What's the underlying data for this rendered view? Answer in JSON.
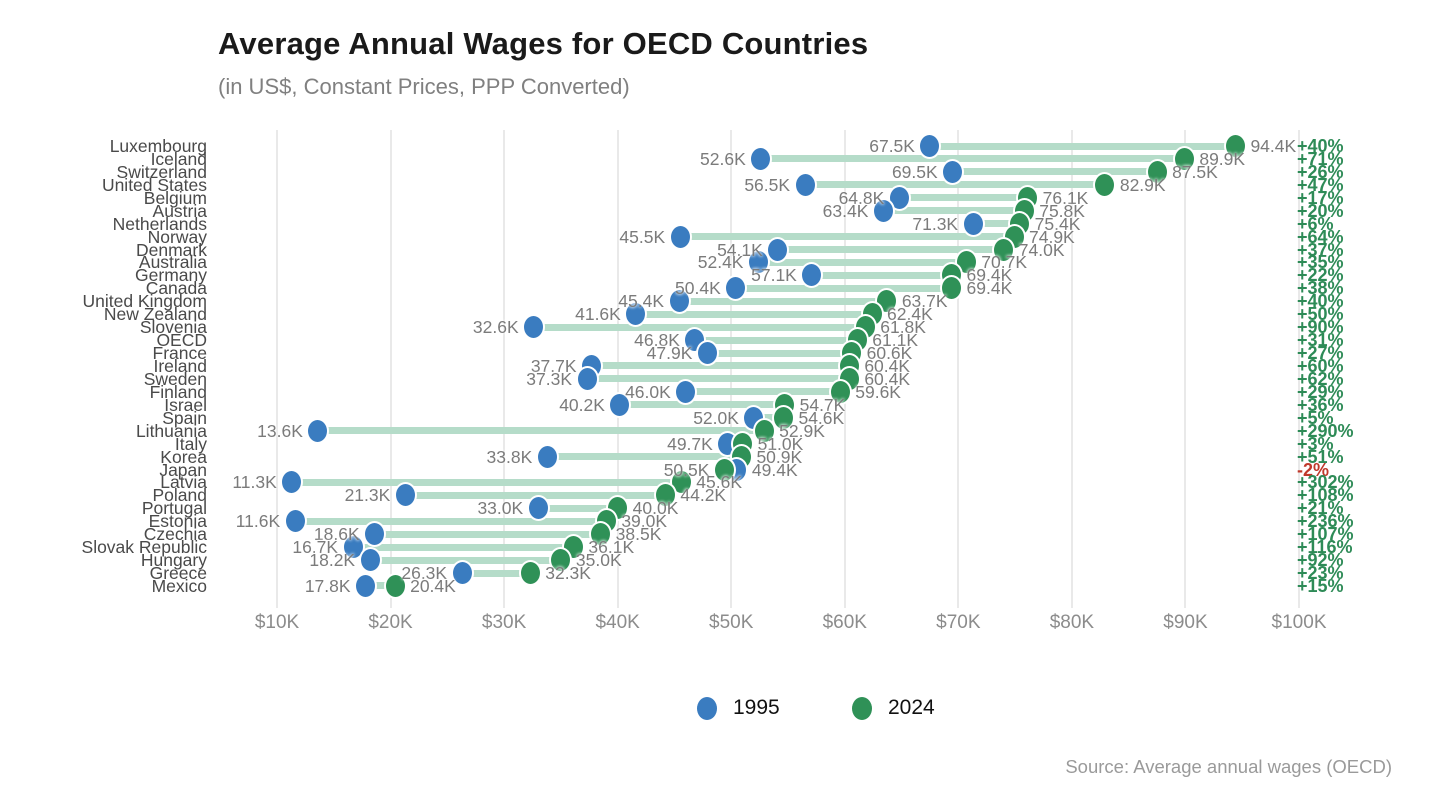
{
  "header": {
    "title": "Average Annual Wages for OECD Countries",
    "subtitle": "(in US$, Constant Prices, PPP Converted)"
  },
  "legend": {
    "items": [
      {
        "label": "1995",
        "color": "#3a7cc0"
      },
      {
        "label": "2024",
        "color": "#2f9157"
      }
    ]
  },
  "source": "Source: Average annual wages (OECD)",
  "colors": {
    "dot_1995": "#3a7cc0",
    "dot_2024": "#2f9157",
    "connector": "#b5dcc9",
    "pct_positive": "#2e8b57",
    "pct_negative": "#c0392b",
    "grid": "#e9e9e9",
    "axis_text": "#8c8c8c",
    "value_text": "#7b7b7b",
    "country_text": "#4a4a4a"
  },
  "chart_data": {
    "type": "dumbbell",
    "title": "Average Annual Wages for OECD Countries",
    "subtitle": "(in US$, Constant Prices, PPP Converted)",
    "unit": "US$ thousands, constant prices, PPP converted",
    "series_names": [
      "1995",
      "2024"
    ],
    "x_axis": {
      "ticks": [
        10,
        20,
        30,
        40,
        50,
        60,
        70,
        80,
        90,
        100
      ],
      "tick_labels": [
        "$10K",
        "$20K",
        "$30K",
        "$40K",
        "$50K",
        "$60K",
        "$70K",
        "$80K",
        "$90K",
        "$100K"
      ],
      "range": [
        10,
        100
      ],
      "grid": true
    },
    "legend_position": "bottom",
    "rows": [
      {
        "country": "Luxembourg",
        "v1995": 67.5,
        "v2024": 94.4,
        "label1995": "67.5K",
        "label2024": "94.4K",
        "change": "+40%",
        "negative": false
      },
      {
        "country": "Iceland",
        "v1995": 52.6,
        "v2024": 89.9,
        "label1995": "52.6K",
        "label2024": "89.9K",
        "change": "+71%",
        "negative": false
      },
      {
        "country": "Switzerland",
        "v1995": 69.5,
        "v2024": 87.5,
        "label1995": "69.5K",
        "label2024": "87.5K",
        "change": "+26%",
        "negative": false
      },
      {
        "country": "United States",
        "v1995": 56.5,
        "v2024": 82.9,
        "label1995": "56.5K",
        "label2024": "82.9K",
        "change": "+47%",
        "negative": false
      },
      {
        "country": "Belgium",
        "v1995": 64.8,
        "v2024": 76.1,
        "label1995": "64.8K",
        "label2024": "76.1K",
        "change": "+17%",
        "negative": false
      },
      {
        "country": "Austria",
        "v1995": 63.4,
        "v2024": 75.8,
        "label1995": "63.4K",
        "label2024": "75.8K",
        "change": "+20%",
        "negative": false
      },
      {
        "country": "Netherlands",
        "v1995": 71.3,
        "v2024": 75.4,
        "label1995": "71.3K",
        "label2024": "75.4K",
        "change": "+6%",
        "negative": false
      },
      {
        "country": "Norway",
        "v1995": 45.5,
        "v2024": 74.9,
        "label1995": "45.5K",
        "label2024": "74.9K",
        "change": "+64%",
        "negative": false
      },
      {
        "country": "Denmark",
        "v1995": 54.1,
        "v2024": 74.0,
        "label1995": "54.1K",
        "label2024": "74.0K",
        "change": "+37%",
        "negative": false
      },
      {
        "country": "Australia",
        "v1995": 52.4,
        "v2024": 70.7,
        "label1995": "52.4K",
        "label2024": "70.7K",
        "change": "+35%",
        "negative": false
      },
      {
        "country": "Germany",
        "v1995": 57.1,
        "v2024": 69.4,
        "label1995": "57.1K",
        "label2024": "69.4K",
        "change": "+22%",
        "negative": false
      },
      {
        "country": "Canada",
        "v1995": 50.4,
        "v2024": 69.4,
        "label1995": "50.4K",
        "label2024": "69.4K",
        "change": "+38%",
        "negative": false
      },
      {
        "country": "United Kingdom",
        "v1995": 45.4,
        "v2024": 63.7,
        "label1995": "45.4K",
        "label2024": "63.7K",
        "change": "+40%",
        "negative": false
      },
      {
        "country": "New Zealand",
        "v1995": 41.6,
        "v2024": 62.4,
        "label1995": "41.6K",
        "label2024": "62.4K",
        "change": "+50%",
        "negative": false
      },
      {
        "country": "Slovenia",
        "v1995": 32.6,
        "v2024": 61.8,
        "label1995": "32.6K",
        "label2024": "61.8K",
        "change": "+90%",
        "negative": false
      },
      {
        "country": "OECD",
        "v1995": 46.8,
        "v2024": 61.1,
        "label1995": "46.8K",
        "label2024": "61.1K",
        "change": "+31%",
        "negative": false
      },
      {
        "country": "France",
        "v1995": 47.9,
        "v2024": 60.6,
        "label1995": "47.9K",
        "label2024": "60.6K",
        "change": "+27%",
        "negative": false
      },
      {
        "country": "Ireland",
        "v1995": 37.7,
        "v2024": 60.4,
        "label1995": "37.7K",
        "label2024": "60.4K",
        "change": "+60%",
        "negative": false
      },
      {
        "country": "Sweden",
        "v1995": 37.3,
        "v2024": 60.4,
        "label1995": "37.3K",
        "label2024": "60.4K",
        "change": "+62%",
        "negative": false
      },
      {
        "country": "Finland",
        "v1995": 46.0,
        "v2024": 59.6,
        "label1995": "46.0K",
        "label2024": "59.6K",
        "change": "+29%",
        "negative": false
      },
      {
        "country": "Israel",
        "v1995": 40.2,
        "v2024": 54.7,
        "label1995": "40.2K",
        "label2024": "54.7K",
        "change": "+36%",
        "negative": false
      },
      {
        "country": "Spain",
        "v1995": 52.0,
        "v2024": 54.6,
        "label1995": "52.0K",
        "label2024": "54.6K",
        "change": "+5%",
        "negative": false
      },
      {
        "country": "Lithuania",
        "v1995": 13.6,
        "v2024": 52.9,
        "label1995": "13.6K",
        "label2024": "52.9K",
        "change": "+290%",
        "negative": false
      },
      {
        "country": "Italy",
        "v1995": 49.7,
        "v2024": 51.0,
        "label1995": "49.7K",
        "label2024": "51.0K",
        "change": "+3%",
        "negative": false
      },
      {
        "country": "Korea",
        "v1995": 33.8,
        "v2024": 50.9,
        "label1995": "33.8K",
        "label2024": "50.9K",
        "change": "+51%",
        "negative": false
      },
      {
        "country": "Japan",
        "v1995": 50.5,
        "v2024": 49.4,
        "label1995": "50.5K",
        "label2024": "49.4K",
        "change": "-2%",
        "negative": true
      },
      {
        "country": "Latvia",
        "v1995": 11.3,
        "v2024": 45.6,
        "label1995": "11.3K",
        "label2024": "45.6K",
        "change": "+302%",
        "negative": false
      },
      {
        "country": "Poland",
        "v1995": 21.3,
        "v2024": 44.2,
        "label1995": "21.3K",
        "label2024": "44.2K",
        "change": "+108%",
        "negative": false
      },
      {
        "country": "Portugal",
        "v1995": 33.0,
        "v2024": 40.0,
        "label1995": "33.0K",
        "label2024": "40.0K",
        "change": "+21%",
        "negative": false
      },
      {
        "country": "Estonia",
        "v1995": 11.6,
        "v2024": 39.0,
        "label1995": "11.6K",
        "label2024": "39.0K",
        "change": "+236%",
        "negative": false
      },
      {
        "country": "Czechia",
        "v1995": 18.6,
        "v2024": 38.5,
        "label1995": "18.6K",
        "label2024": "38.5K",
        "change": "+107%",
        "negative": false
      },
      {
        "country": "Slovak Republic",
        "v1995": 16.7,
        "v2024": 36.1,
        "label1995": "16.7K",
        "label2024": "36.1K",
        "change": "+116%",
        "negative": false
      },
      {
        "country": "Hungary",
        "v1995": 18.2,
        "v2024": 35.0,
        "label1995": "18.2K",
        "label2024": "35.0K",
        "change": "+92%",
        "negative": false
      },
      {
        "country": "Greece",
        "v1995": 26.3,
        "v2024": 32.3,
        "label1995": "26.3K",
        "label2024": "32.3K",
        "change": "+23%",
        "negative": false
      },
      {
        "country": "Mexico",
        "v1995": 17.8,
        "v2024": 20.4,
        "label1995": "17.8K",
        "label2024": "20.4K",
        "change": "+15%",
        "negative": false
      }
    ]
  }
}
